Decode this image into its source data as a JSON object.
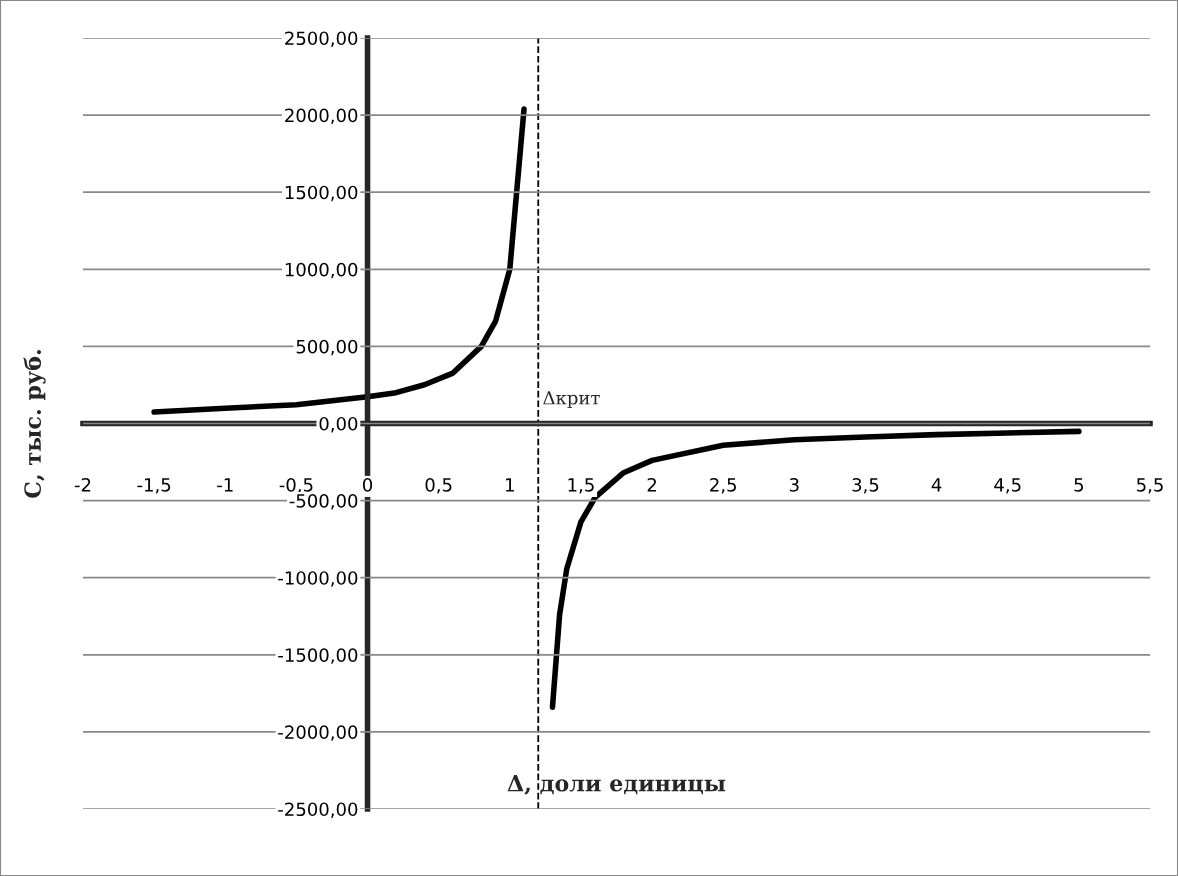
{
  "chart_data": {
    "type": "line",
    "xlabel": "Δ, доли единицы",
    "ylabel": "С, тыс. руб.",
    "series": [
      {
        "color": "#000000",
        "x": [
          -1.5,
          -1,
          -0.5,
          0,
          0.2,
          0.4,
          0.6,
          0.8,
          0.9,
          1.0,
          1.1
        ],
        "values": [
          74,
          99,
          122,
          173,
          200,
          251,
          327,
          500,
          664,
          1000,
          2040
        ]
      },
      {
        "color": "#000000",
        "x": [
          1.3,
          1.35,
          1.4,
          1.5,
          1.6,
          1.8,
          2.0,
          2.5,
          3,
          3.5,
          4,
          4.5,
          5
        ],
        "values": [
          -1840,
          -1240,
          -944,
          -638,
          -479,
          -319,
          -239,
          -141,
          -106,
          -88,
          -72,
          -61,
          -51
        ]
      }
    ],
    "ref_lines": [
      {
        "axis": "x",
        "value": 1.2,
        "label": "Δкрит",
        "color": "#000000",
        "line_style": "dashed"
      }
    ],
    "xlim": [
      -2,
      5.5
    ],
    "xticks": [
      -2,
      {
        "value": -1.5,
        "label": "-1,5"
      },
      -1,
      {
        "value": -0.5,
        "label": "-0,5"
      },
      0,
      {
        "value": 0.5,
        "label": "0,5"
      },
      1,
      {
        "value": 1.5,
        "label": "1,5"
      },
      2,
      {
        "value": 2.5,
        "label": "2,5"
      },
      3,
      {
        "value": 3.5,
        "label": "3,5"
      },
      4,
      {
        "value": 4.5,
        "label": "4,5"
      },
      5,
      {
        "value": 5.5,
        "label": "5,5"
      }
    ],
    "ylim": [
      -2500,
      2500
    ],
    "yticks": [
      {
        "value": -2500,
        "label": "-2500,00"
      },
      {
        "value": -2000,
        "label": "-2000,00"
      },
      {
        "value": -1500,
        "label": "-1500,00"
      },
      {
        "value": -1000,
        "label": "-1000,00"
      },
      {
        "value": -500,
        "label": "-500,00"
      },
      {
        "value": 0,
        "label": "0,00"
      },
      {
        "value": 500,
        "label": "500,00"
      },
      {
        "value": 1000,
        "label": "1000,00"
      },
      {
        "value": 1500,
        "label": "1500,00"
      },
      {
        "value": 2000,
        "label": "2000,00"
      },
      {
        "value": 2500,
        "label": "2500,00"
      }
    ],
    "grid": "y",
    "marker": "none",
    "line_style": "solid",
    "legend": false
  }
}
